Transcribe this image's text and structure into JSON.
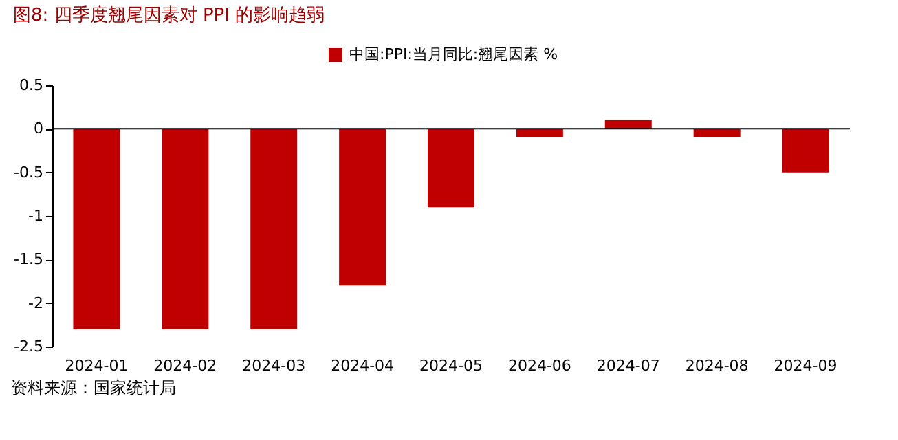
{
  "chart_data": {
    "type": "bar",
    "title": "图8:  四季度翘尾因素对 PPI 的影响趋弱",
    "categories": [
      "2024-01",
      "2024-02",
      "2024-03",
      "2024-04",
      "2024-05",
      "2024-06",
      "2024-07",
      "2024-08",
      "2024-09"
    ],
    "series": [
      {
        "name": "中国:PPI:当月同比:翘尾因素 %",
        "color": "#c00000",
        "values": [
          -2.3,
          -2.3,
          -2.3,
          -1.8,
          -0.9,
          -0.1,
          0.1,
          -0.1,
          -0.5
        ]
      }
    ],
    "ylim": [
      -2.5,
      0.5
    ],
    "yticks": [
      -2.5,
      -2,
      -1.5,
      -1,
      -0.5,
      0,
      0.5
    ],
    "ref_lines": [
      {
        "axis": "y",
        "value": 0,
        "label": null,
        "color": "#000000"
      }
    ],
    "grid": false,
    "legend": "top",
    "annotations": [
      "资料来源：国家统计局"
    ]
  }
}
